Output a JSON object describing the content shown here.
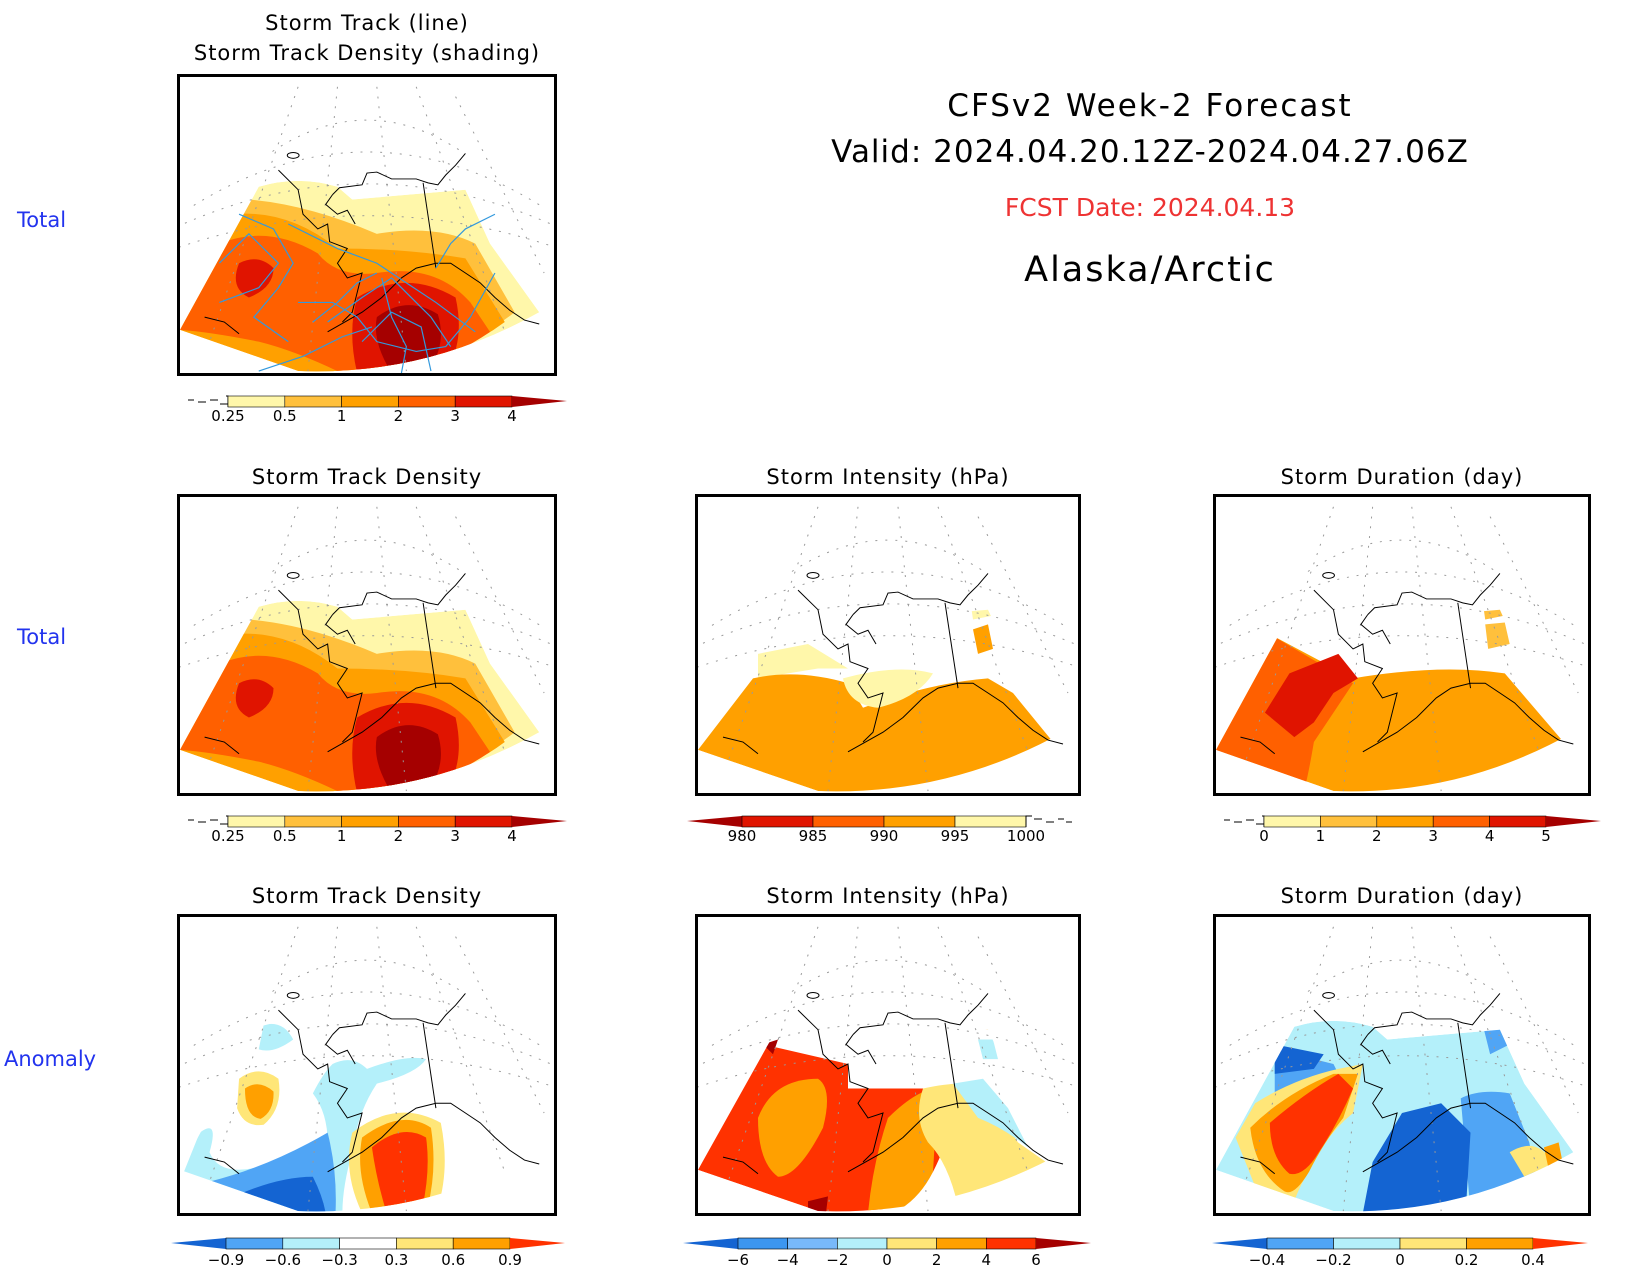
{
  "header": {
    "title": "CFSv2 Week-2 Forecast",
    "valid": "Valid: 2024.04.20.12Z-2024.04.27.06Z",
    "fcst_date": "FCST Date: 2024.04.13",
    "region": "Alaska/Arctic",
    "fcst_color": "#ee3333"
  },
  "row_labels": [
    "Total",
    "Total",
    "Anomaly"
  ],
  "panels": [
    {
      "id": "p1",
      "title_lines": [
        "Storm Track (line)",
        "Storm Track Density (shading)"
      ],
      "field": "total",
      "has_tracks": true
    },
    {
      "id": "p2",
      "title_lines": [
        "Storm Track Density"
      ],
      "field": "total"
    },
    {
      "id": "p3",
      "title_lines": [
        "Storm Intensity (hPa)"
      ],
      "field": "total"
    },
    {
      "id": "p4",
      "title_lines": [
        "Storm Duration (day)"
      ],
      "field": "total"
    },
    {
      "id": "p5",
      "title_lines": [
        "Storm Track Density"
      ],
      "field": "anomaly"
    },
    {
      "id": "p6",
      "title_lines": [
        "Storm Intensity (hPa)"
      ],
      "field": "anomaly"
    },
    {
      "id": "p7",
      "title_lines": [
        "Storm Duration (day)"
      ],
      "field": "anomaly"
    }
  ],
  "colorbars": {
    "density": {
      "labels": [
        "0.25",
        "0.5",
        "1",
        "2",
        "3",
        "4"
      ],
      "colors": [
        "#fff7aa",
        "#ffc03c",
        "#ffa000",
        "#ff6000",
        "#e01400",
        "#a50000"
      ],
      "extend": "max-arrow",
      "min_marker": "dashed"
    },
    "intensity": {
      "labels": [
        "980",
        "985",
        "990",
        "995",
        "1000"
      ],
      "colors": [
        "#a50000",
        "#e01400",
        "#ff6000",
        "#ffa000",
        "#fff7aa"
      ],
      "extend": "min-arrow",
      "max_marker": "dashed"
    },
    "duration": {
      "labels": [
        "0",
        "1",
        "2",
        "3",
        "4",
        "5"
      ],
      "colors": [
        "#fff7aa",
        "#ffc03c",
        "#ffa000",
        "#ff6000",
        "#e01400",
        "#a50000"
      ],
      "extend": "max-arrow",
      "min_marker": "dashed"
    },
    "density_anom": {
      "labels": [
        "-0.9",
        "-0.6",
        "-0.3",
        "0.3",
        "0.6",
        "0.9"
      ],
      "colors": [
        "#1464d2",
        "#50a5f5",
        "#b4f0fa",
        "#ffffff",
        "#ffe678",
        "#ffa000",
        "#ff3200"
      ]
    },
    "intensity_anom": {
      "labels": [
        "-6",
        "-4",
        "-2",
        "0",
        "2",
        "4",
        "6"
      ],
      "colors": [
        "#1464d2",
        "#3c96f0",
        "#78b9fa",
        "#b4f0fa",
        "#ffe678",
        "#ffa000",
        "#ff3200",
        "#a50000"
      ]
    },
    "duration_anom": {
      "labels": [
        "-0.4",
        "-0.2",
        "0",
        "0.2",
        "0.4"
      ],
      "colors": [
        "#1464d2",
        "#50a5f5",
        "#b4f0fa",
        "#ffe678",
        "#ffa000",
        "#ff3200"
      ]
    }
  },
  "colors": {
    "track_line": "#3399dd",
    "coast": "#000000",
    "grid": "#999999"
  }
}
